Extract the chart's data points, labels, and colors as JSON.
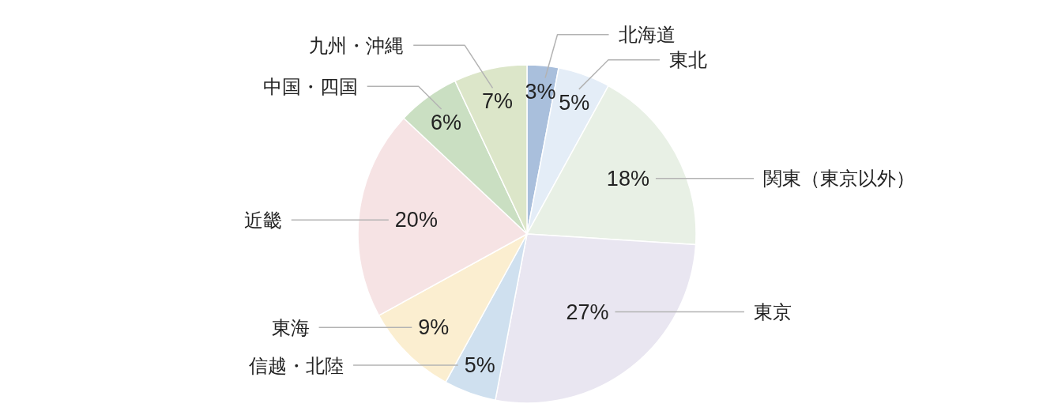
{
  "chart_data": {
    "type": "pie",
    "categories": [
      "北海道",
      "東北",
      "関東（東京以外）",
      "東京",
      "信越・北陸",
      "東海",
      "近畿",
      "中国・四国",
      "九州・沖縄"
    ],
    "values": [
      3,
      5,
      18,
      27,
      5,
      9,
      20,
      6,
      7
    ],
    "value_labels": [
      "3%",
      "5%",
      "18%",
      "27%",
      "5%",
      "9%",
      "20%",
      "6%",
      "7%"
    ],
    "colors": [
      "#a9bfdc",
      "#e4edf7",
      "#e8f0e5",
      "#e9e6f1",
      "#cfe0ef",
      "#fbeed0",
      "#f6e3e4",
      "#cadfc2",
      "#dce6c9"
    ]
  }
}
